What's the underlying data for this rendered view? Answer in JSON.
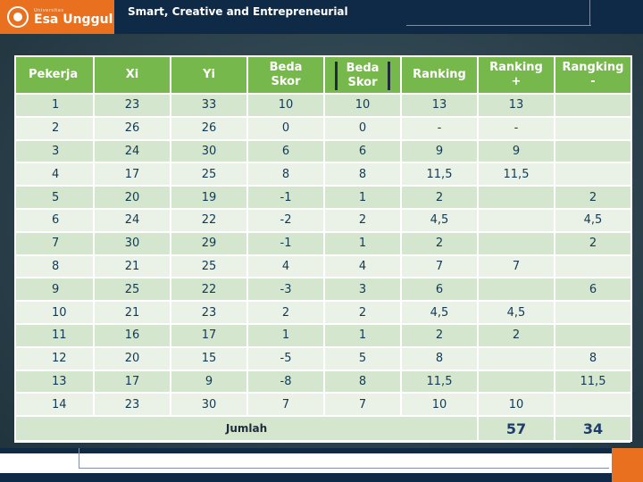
{
  "header": {
    "logo_small": "Universitas",
    "logo_name": "Esa Unggul",
    "tagline": "Smart, Creative and Entrepreneurial"
  },
  "table": {
    "columns": [
      {
        "line1": "Pekerja",
        "line2": ""
      },
      {
        "line1": "Xi",
        "line2": ""
      },
      {
        "line1": "Yi",
        "line2": ""
      },
      {
        "line1": "Beda",
        "line2": "Skor"
      },
      {
        "line1": "Beda",
        "line2": "Skor"
      },
      {
        "line1": "Ranking",
        "line2": ""
      },
      {
        "line1": "Ranking",
        "line2": "+"
      },
      {
        "line1": "Rangking",
        "line2": "-"
      }
    ],
    "rows": [
      [
        "1",
        "23",
        "33",
        "10",
        "10",
        "13",
        "13",
        ""
      ],
      [
        "2",
        "26",
        "26",
        "0",
        "0",
        "-",
        "-",
        ""
      ],
      [
        "3",
        "24",
        "30",
        "6",
        "6",
        "9",
        "9",
        ""
      ],
      [
        "4",
        "17",
        "25",
        "8",
        "8",
        "11,5",
        "11,5",
        ""
      ],
      [
        "5",
        "20",
        "19",
        "-1",
        "1",
        "2",
        "",
        "2"
      ],
      [
        "6",
        "24",
        "22",
        "-2",
        "2",
        "4,5",
        "",
        "4,5"
      ],
      [
        "7",
        "30",
        "29",
        "-1",
        "1",
        "2",
        "",
        "2"
      ],
      [
        "8",
        "21",
        "25",
        "4",
        "4",
        "7",
        "7",
        ""
      ],
      [
        "9",
        "25",
        "22",
        "-3",
        "3",
        "6",
        "",
        "6"
      ],
      [
        "10",
        "21",
        "23",
        "2",
        "2",
        "4,5",
        "4,5",
        ""
      ],
      [
        "11",
        "16",
        "17",
        "1",
        "1",
        "2",
        "2",
        ""
      ],
      [
        "12",
        "20",
        "15",
        "-5",
        "5",
        "8",
        "",
        "8"
      ],
      [
        "13",
        "17",
        "9",
        "-8",
        "8",
        "11,5",
        "",
        "11,5"
      ],
      [
        "14",
        "23",
        "30",
        "7",
        "7",
        "10",
        "10",
        ""
      ]
    ],
    "total_label": "Jumlah",
    "total_plus": "57",
    "total_minus": "34"
  },
  "colors": {
    "header_bg": "#0f2a47",
    "logo_bg": "#e8701e",
    "table_header": "#77b84c",
    "row_odd": "#d5e6cf",
    "row_even": "#eaf2e7"
  }
}
